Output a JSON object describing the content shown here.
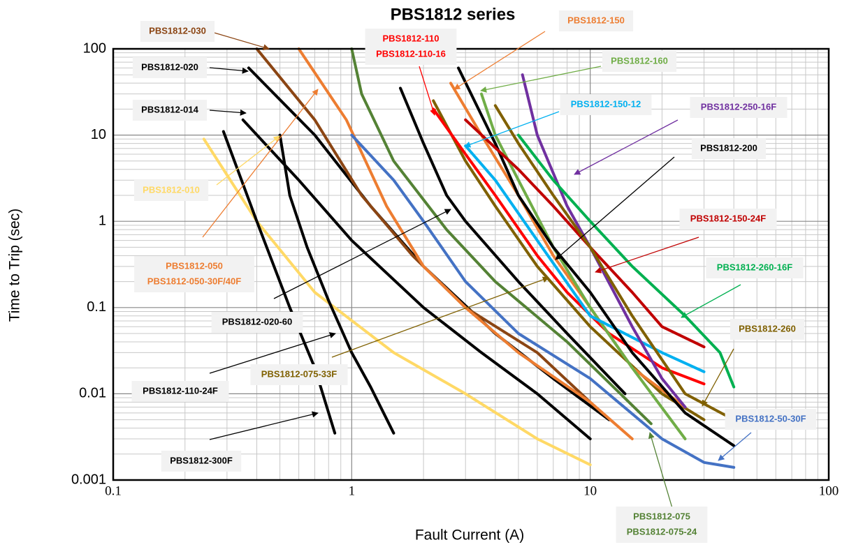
{
  "chart_data": {
    "type": "line",
    "title": "PBS1812 series",
    "x_label": "Fault Current (A)",
    "y_label": "Time to Trip (sec)",
    "log_x": true,
    "log_y": true,
    "grid": true,
    "xlim": [
      0.1,
      100
    ],
    "xticks": [
      0.1,
      1,
      10,
      100
    ],
    "ylim": [
      0.001,
      100
    ],
    "yticks": [
      0.001,
      0.01,
      0.1,
      1,
      10,
      100
    ],
    "xminorticks": [
      0.2,
      0.3,
      0.4,
      0.5,
      0.6,
      0.7,
      0.8,
      0.9,
      2,
      3,
      4,
      5,
      6,
      7,
      8,
      9,
      20,
      30,
      40,
      50,
      60,
      70,
      80,
      90
    ],
    "yminorticks": [
      0.002,
      0.003,
      0.004,
      0.005,
      0.006,
      0.007,
      0.008,
      0.009,
      0.02,
      0.03,
      0.04,
      0.05,
      0.06,
      0.07,
      0.08,
      0.09,
      0.2,
      0.3,
      0.4,
      0.5,
      0.6,
      0.7,
      0.8,
      0.9,
      2,
      3,
      4,
      5,
      6,
      7,
      8,
      9,
      20,
      30,
      40,
      50,
      60,
      70,
      80,
      90
    ],
    "series": [
      {
        "color": "#ffd966",
        "x": [
          0.24,
          0.4,
          0.7,
          1.5,
          3,
          6,
          10
        ],
        "values": [
          9,
          1,
          0.15,
          0.03,
          0.01,
          0.003,
          0.0015
        ]
      },
      {
        "color": "#000000",
        "x": [
          0.29,
          0.4,
          0.55,
          0.7,
          0.85
        ],
        "values": [
          11,
          1,
          0.1,
          0.02,
          0.0035
        ]
      },
      {
        "color": "#000000",
        "x": [
          0.5,
          0.55,
          0.65,
          0.8,
          1,
          1.2,
          1.5
        ],
        "values": [
          10,
          2,
          0.5,
          0.12,
          0.03,
          0.012,
          0.0035
        ]
      },
      {
        "color": "#000000",
        "x": [
          0.35,
          0.6,
          1,
          2,
          3.5,
          6,
          10
        ],
        "values": [
          15,
          3,
          0.6,
          0.1,
          0.03,
          0.01,
          0.003
        ]
      },
      {
        "color": "#000000",
        "x": [
          0.37,
          0.7,
          1.2,
          2,
          4,
          7,
          12
        ],
        "values": [
          60,
          10,
          1.5,
          0.3,
          0.05,
          0.015,
          0.005
        ]
      },
      {
        "color": "#8b4513",
        "x": [
          0.4,
          0.7,
          1.1,
          1.8,
          3,
          6,
          10
        ],
        "values": [
          100,
          15,
          2,
          0.4,
          0.1,
          0.03,
          0.008
        ]
      },
      {
        "color": "#ed7d31",
        "x": [
          0.6,
          0.95,
          1.4,
          2,
          3,
          5,
          10,
          15
        ],
        "values": [
          100,
          15,
          1.5,
          0.3,
          0.1,
          0.03,
          0.008,
          0.003
        ]
      },
      {
        "color": "#000000",
        "x": [
          1.6,
          2,
          2.5,
          3,
          5,
          8,
          14
        ],
        "values": [
          35,
          8,
          2,
          1,
          0.2,
          0.05,
          0.01
        ]
      },
      {
        "color": "#7f6000",
        "x": [
          2.2,
          3,
          4,
          6,
          10,
          20,
          30
        ],
        "values": [
          25,
          5,
          1.5,
          0.3,
          0.06,
          0.01,
          0.005
        ]
      },
      {
        "color": "#4472c4",
        "x": [
          1,
          1.5,
          2,
          3,
          5,
          10,
          20,
          30,
          40
        ],
        "values": [
          10,
          3,
          1,
          0.2,
          0.05,
          0.015,
          0.003,
          0.0016,
          0.0014
        ]
      },
      {
        "color": "#548235",
        "x": [
          1,
          1.1,
          1.5,
          2.5,
          4,
          8,
          18
        ],
        "values": [
          100,
          30,
          5,
          0.8,
          0.2,
          0.04,
          0.0045
        ]
      },
      {
        "color": "#ff0000",
        "x": [
          2.2,
          3,
          4,
          6,
          8,
          12,
          20,
          30
        ],
        "values": [
          20,
          6,
          2,
          0.4,
          0.15,
          0.05,
          0.02,
          0.013
        ]
      },
      {
        "color": "#ed7d31",
        "x": [
          2.6,
          3.5,
          5,
          7,
          10,
          15,
          25
        ],
        "values": [
          40,
          10,
          2,
          0.4,
          0.1,
          0.02,
          0.007
        ]
      },
      {
        "color": "#70ad47",
        "x": [
          3.5,
          4,
          5,
          7,
          10,
          15,
          25
        ],
        "values": [
          30,
          10,
          3,
          0.5,
          0.1,
          0.02,
          0.003
        ]
      },
      {
        "color": "#00b0f0",
        "x": [
          3,
          4,
          6,
          10,
          20,
          30
        ],
        "values": [
          7.5,
          3,
          0.6,
          0.08,
          0.03,
          0.018
        ]
      },
      {
        "color": "#000000",
        "x": [
          2.8,
          4,
          5,
          7,
          10,
          15,
          25,
          40
        ],
        "values": [
          60,
          8,
          2,
          0.5,
          0.15,
          0.03,
          0.006,
          0.0025
        ]
      },
      {
        "color": "#7030a0",
        "x": [
          5.2,
          6,
          8,
          10,
          15,
          20,
          25
        ],
        "values": [
          50,
          10,
          1.5,
          0.5,
          0.06,
          0.015,
          0.007
        ]
      },
      {
        "color": "#c00000",
        "x": [
          3,
          5,
          7,
          10,
          15,
          20,
          30
        ],
        "values": [
          15,
          4,
          1.5,
          0.5,
          0.15,
          0.06,
          0.035
        ]
      },
      {
        "color": "#00b050",
        "x": [
          5,
          7,
          10,
          15,
          25,
          35,
          40
        ],
        "values": [
          10,
          3,
          1,
          0.3,
          0.08,
          0.03,
          0.012
        ]
      },
      {
        "color": "#806000",
        "x": [
          4,
          5,
          7,
          10,
          15,
          25,
          40
        ],
        "values": [
          22,
          8,
          2,
          0.5,
          0.08,
          0.01,
          0.005
        ]
      }
    ],
    "annotations": [
      {
        "lines": [
          "PBS1812-030"
        ],
        "color": "#8b4513"
      },
      {
        "lines": [
          "PBS1812-020"
        ],
        "color": "#000000"
      },
      {
        "lines": [
          "PBS1812-014"
        ],
        "color": "#000000"
      },
      {
        "lines": [
          "PBS1812-010"
        ],
        "color": "#ffd966"
      },
      {
        "lines": [
          "PBS1812-050",
          "PBS1812-050-30F/40F"
        ],
        "color": "#ed7d31"
      },
      {
        "lines": [
          "PBS1812-020-60"
        ],
        "color": "#000000"
      },
      {
        "lines": [
          "PBS1812-110-24F"
        ],
        "color": "#000000"
      },
      {
        "lines": [
          "PBS1812-075-33F"
        ],
        "color": "#7f6000"
      },
      {
        "lines": [
          "PBS1812-300F"
        ],
        "color": "#000000"
      },
      {
        "lines": [
          "PBS1812-110",
          "PBS1812-110-16"
        ],
        "color": "#ff0000"
      },
      {
        "lines": [
          "PBS1812-150"
        ],
        "color": "#ed7d31"
      },
      {
        "lines": [
          "PBS1812-160"
        ],
        "color": "#70ad47"
      },
      {
        "lines": [
          "PBS1812-150-12"
        ],
        "color": "#00b0f0"
      },
      {
        "lines": [
          "PBS1812-250-16F"
        ],
        "color": "#7030a0"
      },
      {
        "lines": [
          "PBS1812-200"
        ],
        "color": "#000000"
      },
      {
        "lines": [
          "PBS1812-150-24F"
        ],
        "color": "#c00000"
      },
      {
        "lines": [
          "PBS1812-260-16F"
        ],
        "color": "#00b050"
      },
      {
        "lines": [
          "PBS1812-260"
        ],
        "color": "#7f6000"
      },
      {
        "lines": [
          "PBS1812-50-30F"
        ],
        "color": "#4472c4"
      },
      {
        "lines": [
          "PBS1812-075",
          "PBS1812-075-24"
        ],
        "color": "#548235"
      }
    ]
  }
}
